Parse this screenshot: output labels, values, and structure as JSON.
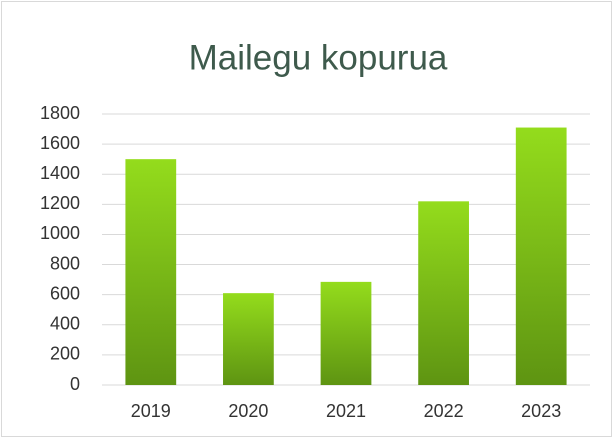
{
  "chart_data": {
    "type": "bar",
    "title": "Mailegu kopurua",
    "categories": [
      "2019",
      "2020",
      "2021",
      "2022",
      "2023"
    ],
    "values": [
      1500,
      610,
      685,
      1220,
      1710
    ],
    "color": "#94dc1c",
    "ylim": [
      0,
      1800
    ],
    "yticks": [
      0,
      200,
      400,
      600,
      800,
      1000,
      1200,
      1400,
      1600,
      1800
    ],
    "grid": true
  }
}
